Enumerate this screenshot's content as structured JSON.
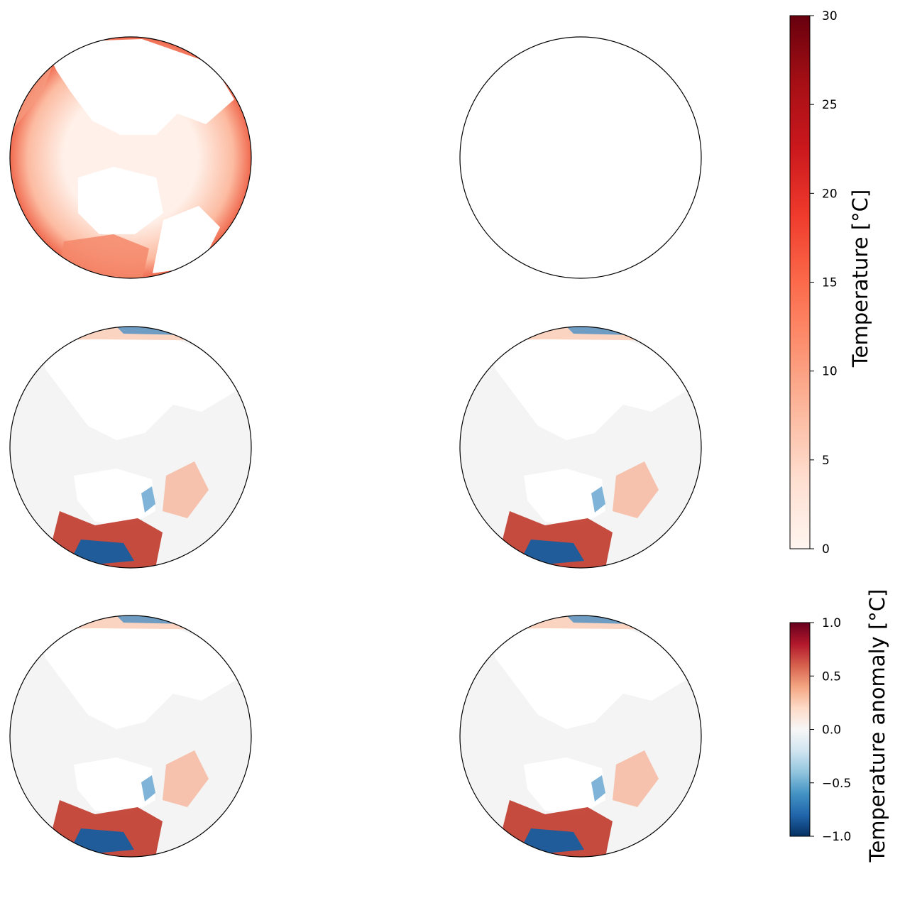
{
  "figure": {
    "panel_count": 6,
    "panels": [
      {
        "id": "top-left",
        "kind": "temperature",
        "empty": false
      },
      {
        "id": "top-right",
        "kind": "empty",
        "empty": true
      },
      {
        "id": "middle-left",
        "kind": "anomaly",
        "empty": false
      },
      {
        "id": "middle-right",
        "kind": "anomaly",
        "empty": false
      },
      {
        "id": "bottom-left",
        "kind": "anomaly",
        "empty": false
      },
      {
        "id": "bottom-right",
        "kind": "anomaly",
        "empty": false
      }
    ]
  },
  "chart_data": [
    {
      "type": "heatmap",
      "projection": "north-polar-stereographic",
      "title": "",
      "colorbar": {
        "label": "Temperature [°C]",
        "colormap": "Reds",
        "range": [
          0,
          30
        ],
        "ticks": [
          0,
          5,
          10,
          15,
          20,
          25,
          30
        ],
        "tick_labels": [
          "0",
          "5",
          "10",
          "15",
          "20",
          "25",
          "30"
        ],
        "colors": [
          "#fff5f0",
          "#fee0d2",
          "#fcbba1",
          "#fc9272",
          "#fb6a4a",
          "#ef3b2c",
          "#cb181d",
          "#a50f15",
          "#67000d"
        ]
      }
    },
    {
      "type": "heatmap",
      "projection": "north-polar-stereographic",
      "title": "",
      "colorbar": {
        "label": "Temperature anomaly [°C]",
        "colormap": "RdBu_r",
        "range": [
          -1.0,
          1.0
        ],
        "ticks": [
          -1.0,
          -0.5,
          0.0,
          0.5,
          1.0
        ],
        "tick_labels": [
          "−1.0",
          "−0.5",
          "0.0",
          "0.5",
          "1.0"
        ],
        "colors": [
          "#053061",
          "#2166ac",
          "#4393c3",
          "#92c5de",
          "#d1e5f0",
          "#f7f7f7",
          "#fddbc7",
          "#f4a582",
          "#d6604d",
          "#b2182b",
          "#67001f"
        ]
      }
    }
  ]
}
